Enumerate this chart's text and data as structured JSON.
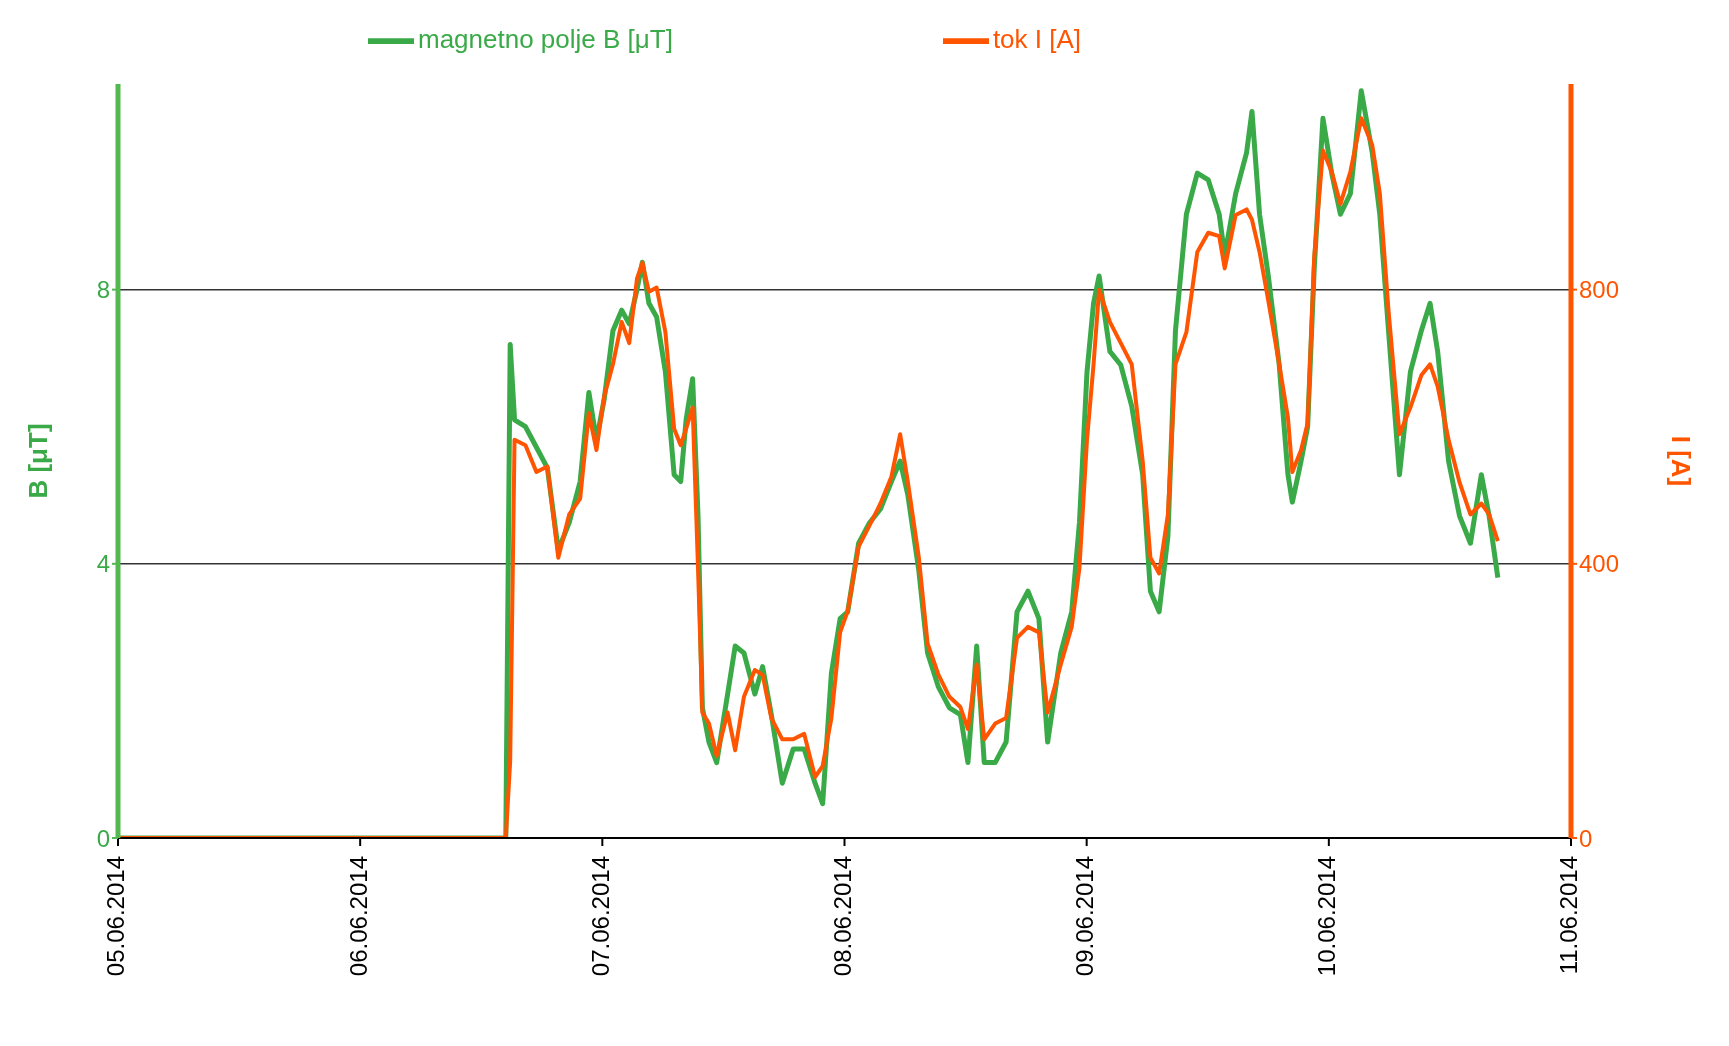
{
  "chart_data": {
    "type": "line",
    "xlabel": null,
    "ylabel": "B [μT]",
    "y2label": "I [A]",
    "legend": "top",
    "grid": "y",
    "x": [
      "2014-06-05T00:00",
      "2014-06-06T14:26",
      "2014-06-06T14:52",
      "2014-06-06T15:18",
      "2014-06-06T16:23",
      "2014-06-06T17:28",
      "2014-06-06T18:33",
      "2014-06-06T19:38",
      "2014-06-06T20:43",
      "2014-06-06T21:48",
      "2014-06-06T22:40",
      "2014-06-06T23:25",
      "2014-06-07T00:11",
      "2014-06-07T01:03",
      "2014-06-07T01:55",
      "2014-06-07T02:40",
      "2014-06-07T03:26",
      "2014-06-07T03:58",
      "2014-06-07T04:37",
      "2014-06-07T05:23",
      "2014-06-07T06:15",
      "2014-06-07T07:07",
      "2014-06-07T07:46",
      "2014-06-07T08:18",
      "2014-06-07T08:57",
      "2014-06-07T09:29",
      "2014-06-07T09:55",
      "2014-06-07T10:34",
      "2014-06-07T11:20",
      "2014-06-07T12:25",
      "2014-06-07T13:10",
      "2014-06-07T14:02",
      "2014-06-07T15:07",
      "2014-06-07T15:53",
      "2014-06-07T16:45",
      "2014-06-07T17:50",
      "2014-06-07T18:55",
      "2014-06-07T20:00",
      "2014-06-07T21:05",
      "2014-06-07T21:50",
      "2014-06-07T22:42",
      "2014-06-07T23:34",
      "2014-06-08T00:19",
      "2014-06-08T01:24",
      "2014-06-08T02:29",
      "2014-06-08T03:34",
      "2014-06-08T04:39",
      "2014-06-08T05:31",
      "2014-06-08T06:17",
      "2014-06-08T07:22",
      "2014-06-08T08:14",
      "2014-06-08T09:19",
      "2014-06-08T10:24",
      "2014-06-08T11:29",
      "2014-06-08T12:14",
      "2014-06-08T13:06",
      "2014-06-08T13:51",
      "2014-06-08T14:56",
      "2014-06-08T16:01",
      "2014-06-08T17:06",
      "2014-06-08T18:11",
      "2014-06-08T19:16",
      "2014-06-08T20:08",
      "2014-06-08T21:26",
      "2014-06-08T22:31",
      "2014-06-08T23:17",
      "2014-06-09T00:02",
      "2014-06-09T00:41",
      "2014-06-09T01:14",
      "2014-06-09T02:18",
      "2014-06-09T03:23",
      "2014-06-09T04:28",
      "2014-06-09T05:33",
      "2014-06-09T06:19",
      "2014-06-09T07:11",
      "2014-06-09T08:03",
      "2014-06-09T08:48",
      "2014-06-09T09:53",
      "2014-06-09T10:58",
      "2014-06-09T12:03",
      "2014-06-09T13:08",
      "2014-06-09T13:41",
      "2014-06-09T14:46",
      "2014-06-09T15:51",
      "2014-06-09T16:23",
      "2014-06-09T17:08",
      "2014-06-09T18:00",
      "2014-06-09T19:05",
      "2014-06-09T19:57",
      "2014-06-09T20:23",
      "2014-06-09T21:15",
      "2014-06-09T21:54",
      "2014-06-09T22:33",
      "2014-06-09T23:25",
      "2014-06-10T00:17",
      "2014-06-10T01:09",
      "2014-06-10T02:08",
      "2014-06-10T03:13",
      "2014-06-10T04:18",
      "2014-06-10T05:03",
      "2014-06-10T05:55",
      "2014-06-10T07:00",
      "2014-06-10T08:05",
      "2014-06-10T09:10",
      "2014-06-10T10:02",
      "2014-06-10T10:47",
      "2014-06-10T11:52",
      "2014-06-10T12:57",
      "2014-06-10T14:02",
      "2014-06-10T15:07",
      "2014-06-10T15:53",
      "2014-06-10T16:45"
    ],
    "xlim": [
      "2014-06-05",
      "2014-06-11"
    ],
    "xticks": [
      {
        "value": "2014-06-05",
        "label": "05.06.2014"
      },
      {
        "value": "2014-06-06",
        "label": "06.06.2014"
      },
      {
        "value": "2014-06-07",
        "label": "07.06.2014"
      },
      {
        "value": "2014-06-08",
        "label": "08.06.2014"
      },
      {
        "value": "2014-06-09",
        "label": "09.06.2014"
      },
      {
        "value": "2014-06-10",
        "label": "10.06.2014"
      },
      {
        "value": "2014-06-11",
        "label": "11.06.2014"
      }
    ],
    "ylim": [
      0,
      11
    ],
    "yticks": [
      0,
      4,
      8
    ],
    "y2lim": [
      0,
      1100
    ],
    "y2ticks": [
      0,
      400,
      800
    ],
    "series": [
      {
        "name": "magnetno polje B [μT]",
        "color": "#3aaa48",
        "values": [
          0,
          0,
          7.2,
          6.1,
          6.0,
          5.7,
          5.4,
          4.2,
          4.6,
          5.2,
          6.5,
          5.8,
          6.4,
          7.4,
          7.7,
          7.5,
          8.0,
          8.4,
          7.8,
          7.6,
          6.8,
          5.3,
          5.2,
          6.1,
          6.7,
          4.7,
          1.9,
          1.4,
          1.1,
          2.1,
          2.8,
          2.7,
          2.1,
          2.5,
          1.8,
          0.8,
          1.3,
          1.3,
          0.8,
          0.5,
          2.4,
          3.2,
          3.3,
          4.3,
          4.6,
          4.8,
          5.2,
          5.5,
          5.0,
          3.9,
          2.7,
          2.2,
          1.9,
          1.8,
          1.1,
          2.8,
          1.1,
          1.1,
          1.4,
          3.3,
          3.6,
          3.2,
          1.4,
          2.7,
          3.3,
          4.6,
          6.8,
          7.8,
          8.2,
          7.1,
          6.9,
          6.3,
          5.3,
          3.6,
          3.3,
          4.4,
          7.4,
          9.1,
          9.7,
          9.6,
          9.1,
          8.5,
          9.4,
          10.0,
          10.6,
          9.1,
          8.2,
          6.9,
          5.3,
          4.9,
          5.5,
          6.0,
          8.3,
          10.5,
          9.7,
          9.1,
          9.4,
          10.9,
          10.0,
          9.1,
          7.4,
          5.3,
          6.8,
          7.4,
          7.8,
          7.1,
          5.5,
          4.7,
          4.3,
          5.3,
          4.7,
          3.8
        ]
      },
      {
        "name": "tok I [A]",
        "color": "#ff5500",
        "axis": "y2",
        "values": [
          0,
          0,
          112,
          581,
          573,
          534,
          542,
          409,
          472,
          495,
          620,
          566,
          644,
          691,
          753,
          722,
          816,
          839,
          797,
          803,
          738,
          597,
          573,
          597,
          628,
          394,
          183,
          167,
          120,
          183,
          128,
          206,
          245,
          238,
          175,
          144,
          144,
          152,
          89,
          105,
          175,
          300,
          331,
          425,
          456,
          488,
          527,
          589,
          519,
          409,
          284,
          238,
          206,
          191,
          159,
          253,
          144,
          167,
          175,
          292,
          308,
          300,
          183,
          253,
          308,
          394,
          581,
          691,
          800,
          753,
          722,
          691,
          550,
          409,
          386,
          472,
          691,
          738,
          855,
          883,
          878,
          831,
          909,
          917,
          902,
          855,
          784,
          691,
          613,
          534,
          566,
          605,
          847,
          1003,
          972,
          925,
          972,
          1050,
          1011,
          941,
          769,
          589,
          628,
          675,
          691,
          659,
          581,
          519,
          472,
          488,
          472,
          433
        ]
      }
    ]
  }
}
